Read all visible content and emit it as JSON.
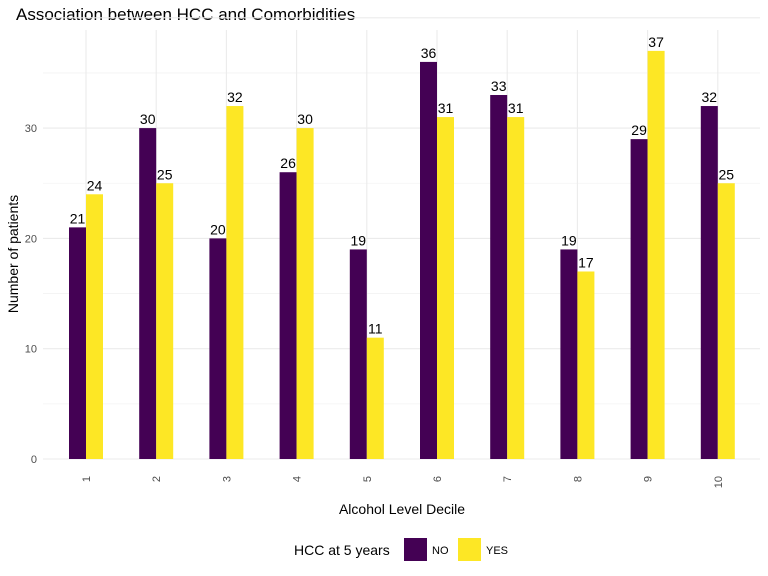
{
  "chart_data": {
    "type": "bar",
    "title": "Association between HCC and Comorbidities",
    "xlabel": "Alcohol Level Decile",
    "ylabel": "Number of patients",
    "categories": [
      "1",
      "2",
      "3",
      "4",
      "5",
      "6",
      "7",
      "8",
      "9",
      "10"
    ],
    "series": [
      {
        "name": "NO",
        "values": [
          21,
          30,
          20,
          26,
          19,
          36,
          33,
          19,
          29,
          32
        ],
        "color": "#440154"
      },
      {
        "name": "YES",
        "values": [
          24,
          25,
          32,
          30,
          11,
          31,
          31,
          17,
          37,
          25
        ],
        "color": "#FDE725"
      }
    ],
    "ylim": [
      0,
      40
    ],
    "yticks": [
      0,
      10,
      20,
      30
    ],
    "grid": true,
    "legend": {
      "title": "HCC at 5 years",
      "placement": "bottom"
    }
  }
}
